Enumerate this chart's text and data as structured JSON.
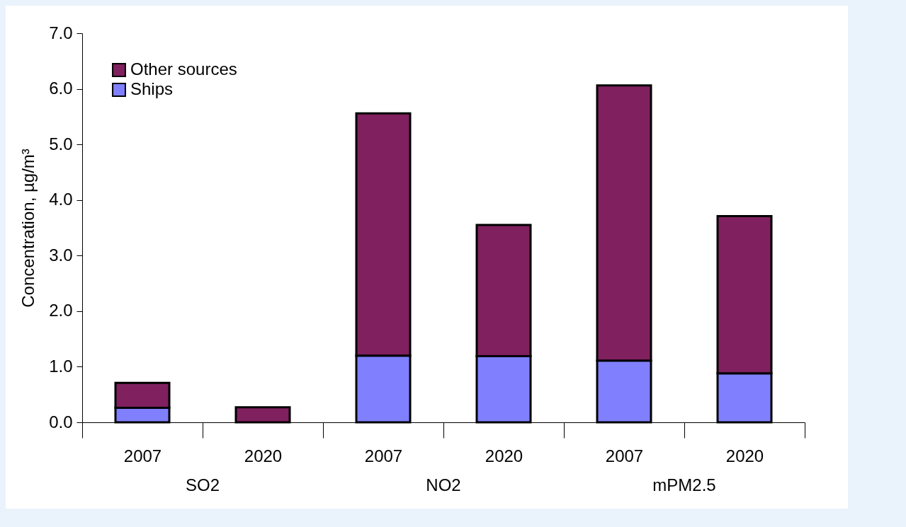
{
  "chart_data": {
    "type": "bar",
    "stacked": true,
    "ylabel": "Concentration, µg/m³",
    "categories": [
      "2007",
      "2020",
      "2007",
      "2020",
      "2007",
      "2020"
    ],
    "annotations": [
      "SO2",
      "NO2",
      "mPM2.5"
    ],
    "series": [
      {
        "name": "Ships",
        "color": "#8080ff",
        "values": [
          0.26,
          null,
          1.2,
          1.19,
          1.11,
          0.88
        ]
      },
      {
        "name": "Other sources",
        "color": "#80205f",
        "values": [
          0.45,
          0.27,
          4.36,
          2.36,
          4.95,
          2.83
        ]
      }
    ],
    "ylim": [
      0,
      7
    ],
    "yticks": [
      {
        "value": 0,
        "label": "0.0"
      },
      {
        "value": 1,
        "label": "1.0"
      },
      {
        "value": 2,
        "label": "2.0"
      },
      {
        "value": 3,
        "label": "3.0"
      },
      {
        "value": 4,
        "label": "4.0"
      },
      {
        "value": 5,
        "label": "5.0"
      },
      {
        "value": 6,
        "label": "6.0"
      },
      {
        "value": 7,
        "label": "7.0"
      }
    ],
    "grid": false,
    "legend": "top left"
  }
}
